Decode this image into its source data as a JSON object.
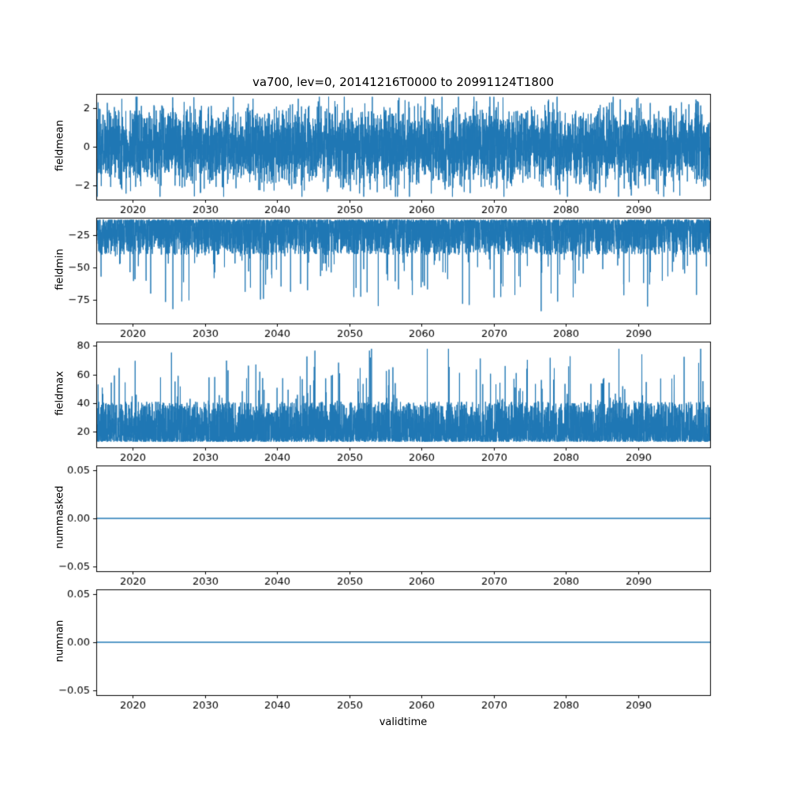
{
  "figure": {
    "title": "va700, lev=0, 20141216T0000 to 20991124T1800",
    "xlabel": "validtime",
    "line_color": "#1f77b4",
    "frame_color": "#000000",
    "background": "#ffffff",
    "x_axis": {
      "lim": [
        2014.96,
        2100.0
      ],
      "ticks": [
        2020,
        2030,
        2040,
        2050,
        2060,
        2070,
        2080,
        2090
      ],
      "tick_labels": [
        "2020",
        "2030",
        "2040",
        "2050",
        "2060",
        "2070",
        "2080",
        "2090"
      ]
    }
  },
  "chart_data": [
    {
      "name": "fieldmean",
      "type": "line",
      "ylabel": "fieldmean",
      "ylim": [
        -2.75,
        2.75
      ],
      "yticks": [
        -2,
        0,
        2
      ],
      "ytick_labels": [
        "−2",
        "0",
        "2"
      ],
      "legend": "none",
      "grid": false,
      "series": {
        "kind": "gaussian",
        "n": 6000,
        "seed": 42,
        "mean": 0,
        "std": 0.95,
        "clip": 2.6,
        "lw": 1,
        "summary": "dense high-frequency noise centred on 0, band roughly -1.8 to 1.8 with excursions to about -2.6 and 2.6 across 2015-2100"
      }
    },
    {
      "name": "fieldmin",
      "type": "line",
      "ylabel": "fieldmin",
      "ylim": [
        -93,
        -12
      ],
      "yticks": [
        -25,
        -50,
        -75
      ],
      "ytick_labels": [
        "−25",
        "−50",
        "−75"
      ],
      "legend": "none",
      "grid": false,
      "series": {
        "kind": "spiky_min",
        "n": 6000,
        "seed": 7,
        "base": -13.5,
        "band": 27,
        "pow": 2.0,
        "spike_p": 0.03,
        "spike_lo": 5,
        "spike_hi": 50,
        "floor": -90,
        "lw": 1,
        "summary": "dense noise hugging -14 to -40 with frequent downward spikes reaching about -90 across 2015-2100"
      }
    },
    {
      "name": "fieldmax",
      "type": "line",
      "ylabel": "fieldmax",
      "ylim": [
        9,
        83
      ],
      "yticks": [
        20,
        40,
        60,
        80
      ],
      "ytick_labels": [
        "20",
        "40",
        "60",
        "80"
      ],
      "legend": "none",
      "grid": false,
      "series": {
        "kind": "spiky_max",
        "n": 6000,
        "seed": 13,
        "base": 13,
        "band": 28,
        "pow": 2.0,
        "spike_p": 0.03,
        "spike_lo": 5,
        "spike_hi": 45,
        "cap": 78,
        "lw": 1,
        "summary": "dense noise hugging 13 to 45 with frequent upward spikes reaching about 78 across 2015-2100"
      }
    },
    {
      "name": "nummasked",
      "type": "line",
      "ylabel": "nummasked",
      "ylim": [
        -0.055,
        0.055
      ],
      "yticks": [
        -0.05,
        0,
        0.05
      ],
      "ytick_labels": [
        "−0.05",
        "0.00",
        "0.05"
      ],
      "legend": "none",
      "grid": false,
      "series": {
        "kind": "constant",
        "n": 2,
        "seed": 1,
        "value": 0,
        "lw": 1.6,
        "summary": "constant value 0.00 for the whole period"
      }
    },
    {
      "name": "numnan",
      "type": "line",
      "ylabel": "numnan",
      "ylim": [
        -0.055,
        0.055
      ],
      "yticks": [
        -0.05,
        0,
        0.05
      ],
      "ytick_labels": [
        "−0.05",
        "0.00",
        "0.05"
      ],
      "legend": "none",
      "grid": false,
      "series": {
        "kind": "constant",
        "n": 2,
        "seed": 2,
        "value": 0,
        "lw": 1.6,
        "summary": "constant value 0.00 for the whole period"
      }
    }
  ]
}
